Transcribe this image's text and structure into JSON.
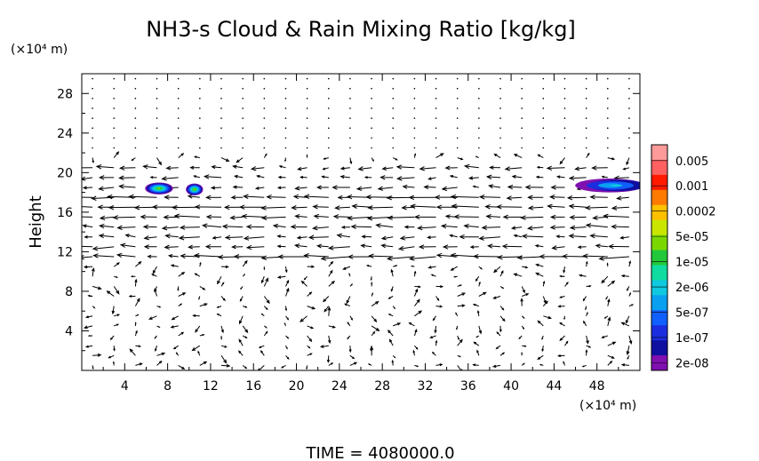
{
  "chart_data": {
    "type": "vector-field-contour",
    "title": "NH3-s Cloud & Rain Mixing Ratio [kg/kg]",
    "ylabel": "Height",
    "xlabel": "",
    "x_unit": "(×10⁴ m)",
    "y_unit": "(×10⁴ m)",
    "footer": "TIME = 4080000.0",
    "xlim": [
      0,
      52
    ],
    "ylim": [
      0,
      30
    ],
    "x_ticks": [
      {
        "value": 4,
        "label": "4"
      },
      {
        "value": 8,
        "label": "8"
      },
      {
        "value": 12,
        "label": "12"
      },
      {
        "value": 16,
        "label": "16"
      },
      {
        "value": 20,
        "label": "20"
      },
      {
        "value": 24,
        "label": "24"
      },
      {
        "value": 28,
        "label": "28"
      },
      {
        "value": 32,
        "label": "32"
      },
      {
        "value": 36,
        "label": "36"
      },
      {
        "value": 40,
        "label": "40"
      },
      {
        "value": 44,
        "label": "44"
      },
      {
        "value": 48,
        "label": "48"
      }
    ],
    "y_ticks": [
      {
        "value": 4,
        "label": "4"
      },
      {
        "value": 8,
        "label": "8"
      },
      {
        "value": 12,
        "label": "12"
      },
      {
        "value": 16,
        "label": "16"
      },
      {
        "value": 20,
        "label": "20"
      },
      {
        "value": 24,
        "label": "24"
      },
      {
        "value": 28,
        "label": "28"
      }
    ],
    "colorbar": {
      "scale": "log",
      "levels": [
        "0.005",
        "0.001",
        "0.0002",
        "5e-05",
        "1e-05",
        "2e-06",
        "5e-07",
        "1e-07",
        "2e-08"
      ],
      "colors": [
        "#ff9a9a",
        "#ff6060",
        "#ff1a00",
        "#ff7a00",
        "#ffc000",
        "#c8e600",
        "#7ad800",
        "#22c83a",
        "#10dca0",
        "#10c8e0",
        "#0aa0f0",
        "#1060ff",
        "#1a2ee0",
        "#1010a0",
        "#8010b0"
      ]
    },
    "cloud_patches": [
      {
        "x": 7.2,
        "y": 18.4,
        "rx": 1.3,
        "ry": 0.6
      },
      {
        "x": 10.5,
        "y": 18.3,
        "rx": 0.8,
        "ry": 0.6
      },
      {
        "x": 49.5,
        "y": 18.7,
        "rx": 3.2,
        "ry": 0.7
      }
    ]
  }
}
